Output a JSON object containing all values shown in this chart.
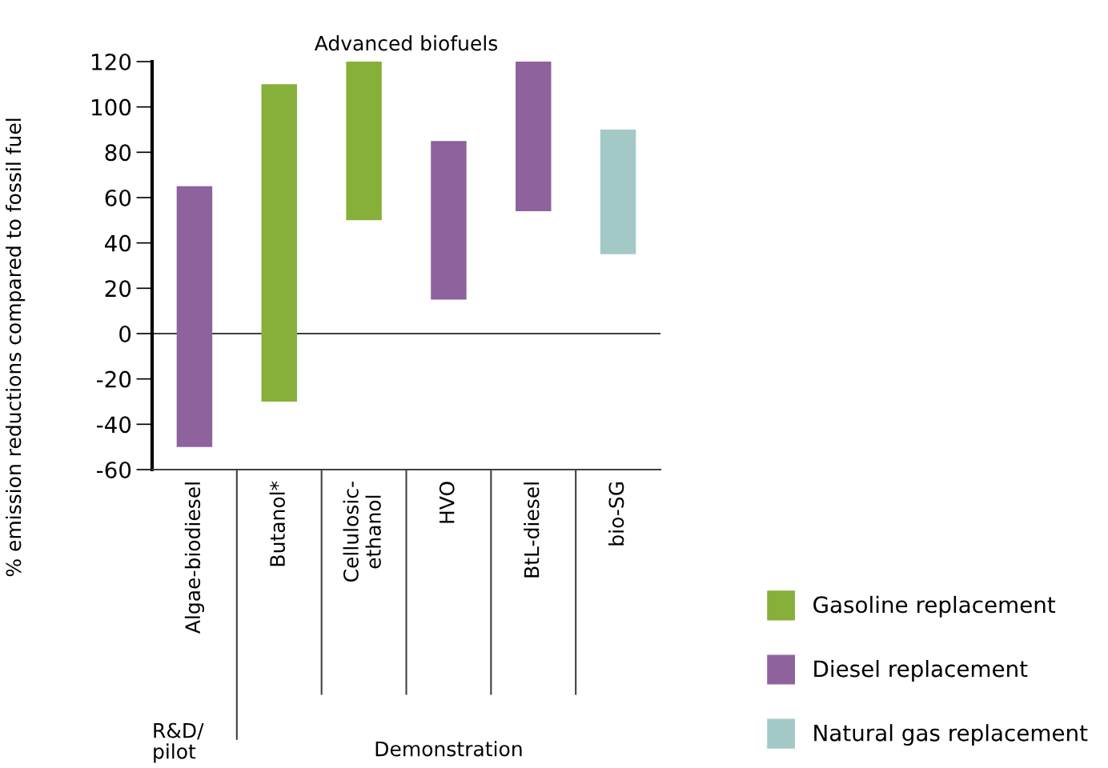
{
  "chart_data": {
    "type": "bar",
    "title": "Advanced biofuels",
    "ylabel": "% emission reductions compared to fossil fuel",
    "categories": [
      "Algae-biodiesel",
      "Butanol*",
      "Cellulosic-\nethanol",
      "HVO",
      "BtL-diesel",
      "bio-SG"
    ],
    "series": [
      {
        "name": "Gasoline replacement",
        "color": "#86b03a",
        "values": [
          null,
          140,
          70,
          null,
          null,
          null
        ],
        "base": [
          null,
          -30,
          50,
          null,
          null,
          null
        ]
      },
      {
        "name": "Diesel replacement",
        "color": "#8e629c",
        "values": [
          115,
          null,
          null,
          70,
          66,
          null
        ],
        "base": [
          -50,
          null,
          null,
          15,
          54,
          null
        ]
      },
      {
        "name": "Natural gas replacement",
        "color": "#a3c9c6",
        "values": [
          null,
          null,
          null,
          null,
          null,
          55
        ],
        "base": [
          null,
          null,
          null,
          null,
          null,
          35
        ]
      }
    ],
    "ylim": [
      -60,
      120
    ],
    "yticks": [
      -60,
      -40,
      -20,
      0,
      20,
      40,
      60,
      80,
      100,
      120
    ],
    "ref_lines": [
      {
        "axis": "y",
        "value": 0,
        "color": "#404040"
      }
    ],
    "annotations": [
      "R&D/\npilot",
      "Demonstration"
    ],
    "grid": false,
    "legend": "right"
  }
}
